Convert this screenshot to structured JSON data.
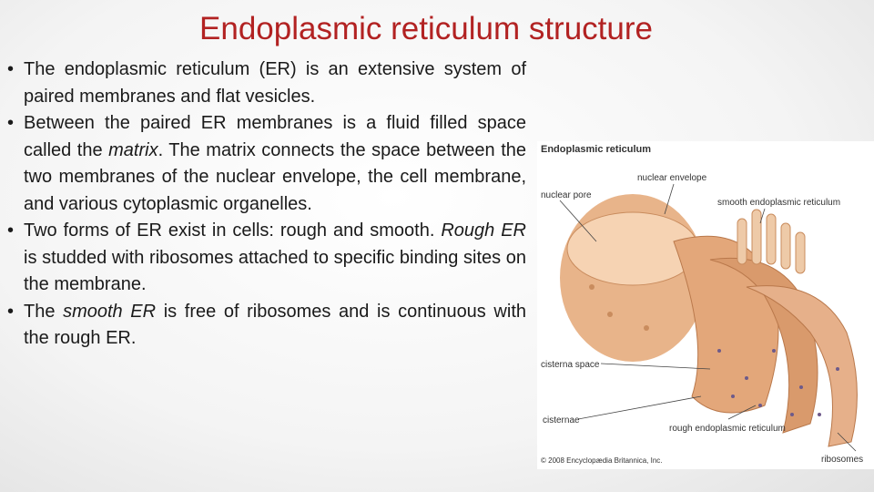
{
  "title": "Endoplasmic reticulum structure",
  "bullets": [
    [
      {
        "text": "The endoplasmic reticulum (ER) is an extensive system of paired membranes and flat vesicles.",
        "italic": false
      }
    ],
    [
      {
        "text": "Between the paired ER membranes is a fluid filled space called the ",
        "italic": false
      },
      {
        "text": "matrix",
        "italic": true
      },
      {
        "text": ". The matrix connects the space between the two membranes of the nuclear envelope, the cell membrane, and various cytoplasmic organelles.",
        "italic": false
      }
    ],
    [
      {
        "text": "Two forms of ER exist in cells: rough and smooth. ",
        "italic": false
      },
      {
        "text": "Rough ER",
        "italic": true
      },
      {
        "text": " is studded with ribosomes attached to specific binding sites on the membrane.",
        "italic": false
      }
    ],
    [
      {
        "text": "The ",
        "italic": false
      },
      {
        "text": "smooth ER",
        "italic": true
      },
      {
        "text": " is free of ribosomes and is continuous with the rough ER.",
        "italic": false
      }
    ]
  ],
  "figure": {
    "title": "Endoplasmic reticulum",
    "labels": {
      "nuclear_envelope": "nuclear envelope",
      "nuclear_pore": "nuclear pore",
      "smooth_er": "smooth endoplasmic reticulum",
      "cisterna_space": "cisterna space",
      "cisternae": "cisternae",
      "rough_er": "rough endoplasmic reticulum",
      "ribosomes": "ribosomes"
    },
    "credit": "© 2008 Encyclopædia Britannica, Inc."
  }
}
